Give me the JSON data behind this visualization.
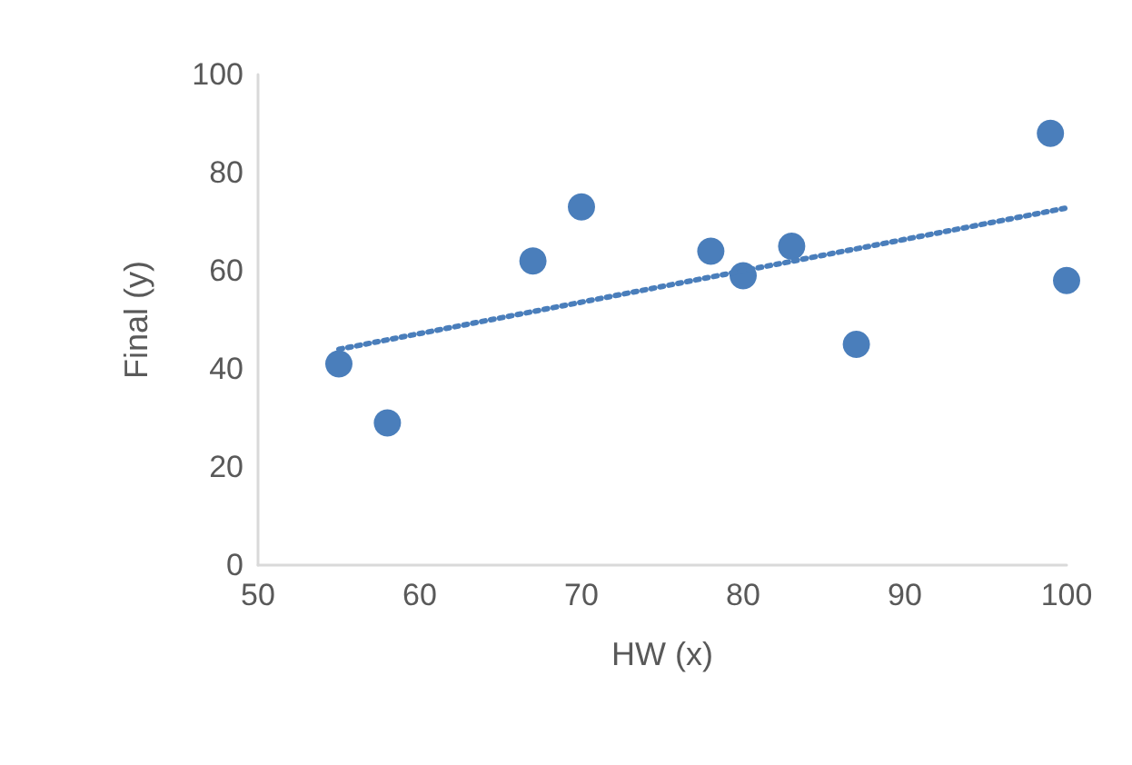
{
  "chart_data": {
    "type": "scatter",
    "xlabel": "HW (x)",
    "ylabel": "Final (y)",
    "x": [
      55,
      58,
      67,
      70,
      78,
      80,
      83,
      87,
      99,
      100
    ],
    "series": [
      {
        "color": "#4a7ebb",
        "marker": "circle",
        "values": [
          41,
          29,
          62,
          73,
          64,
          59,
          65,
          45,
          88,
          58
        ]
      },
      {
        "type": "line",
        "color": "#4a7ebb",
        "line_style": "dotted",
        "marker": "none",
        "x": [
          55,
          100
        ],
        "values": [
          44,
          72.8
        ]
      }
    ],
    "xlim": [
      50,
      100
    ],
    "xticks": [
      50,
      60,
      70,
      80,
      90,
      100
    ],
    "ylim": [
      0,
      100
    ],
    "yticks": [
      0,
      20,
      40,
      60,
      80,
      100
    ],
    "grid": false
  }
}
